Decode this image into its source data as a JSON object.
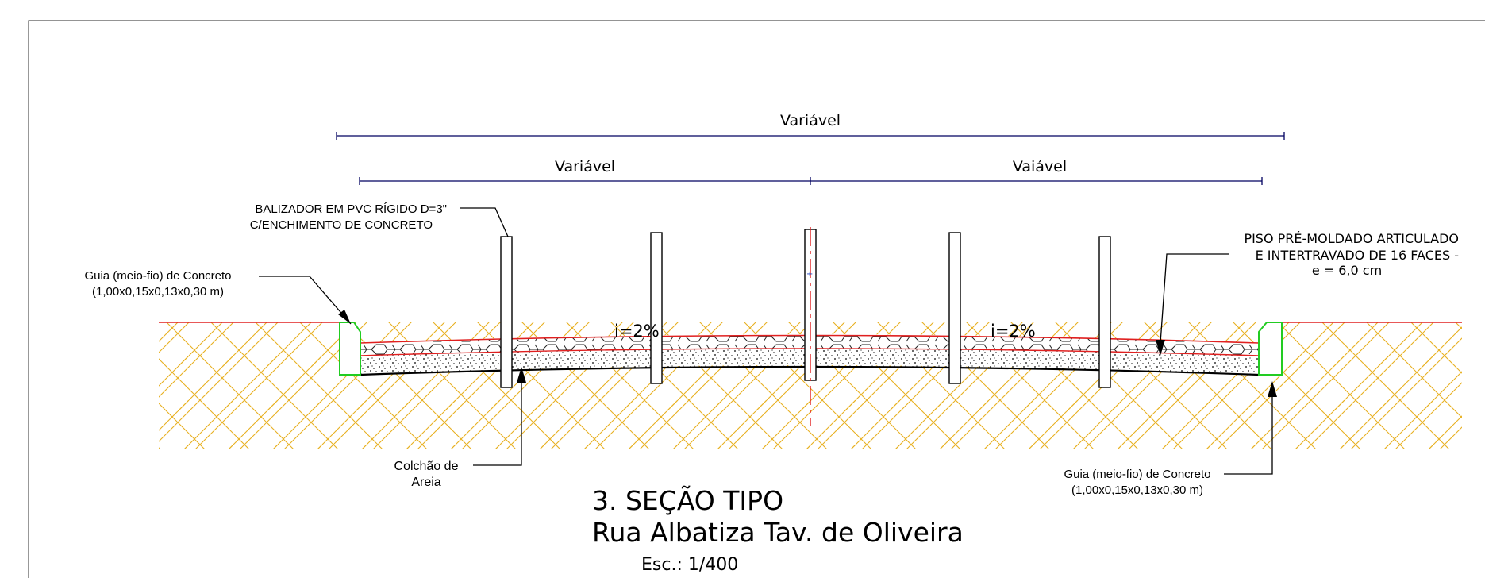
{
  "dimensions": {
    "overall": "Variável",
    "left": "Variável",
    "right": "Vaiável"
  },
  "labels": {
    "balizador_line1": "BALIZADOR EM PVC RÍGIDO D=3\"",
    "balizador_line2": "C/ENCHIMENTO DE CONCRETO",
    "guia_left_line1": "Guia (meio-fio) de Concreto",
    "guia_left_line2": "(1,00x0,15x0,13x0,30 m)",
    "piso_line1": "PISO PRÉ-MOLDADO ARTICULADO",
    "piso_line2": "E INTERTRAVADO DE 16 FACES -",
    "piso_line3": "e = 6,0 cm",
    "slope_left": "i=2%",
    "slope_right": "i=2%",
    "colchao_line1": "Colchão de",
    "colchao_line2": "Areia",
    "guia_right_line1": "Guia (meio-fio) de Concreto",
    "guia_right_line2": "(1,00x0,15x0,13x0,30 m)"
  },
  "title": {
    "line1": "3. SEÇÃO TIPO",
    "line2": "Rua Albatiza Tav. de Oliveira",
    "scale": "Esc.: 1/400"
  },
  "colors": {
    "soil": "#e8b020",
    "pavement_outline": "#e02020",
    "curb": "#22cc22",
    "dimension_line": "#000060",
    "axis": "#e02020"
  }
}
